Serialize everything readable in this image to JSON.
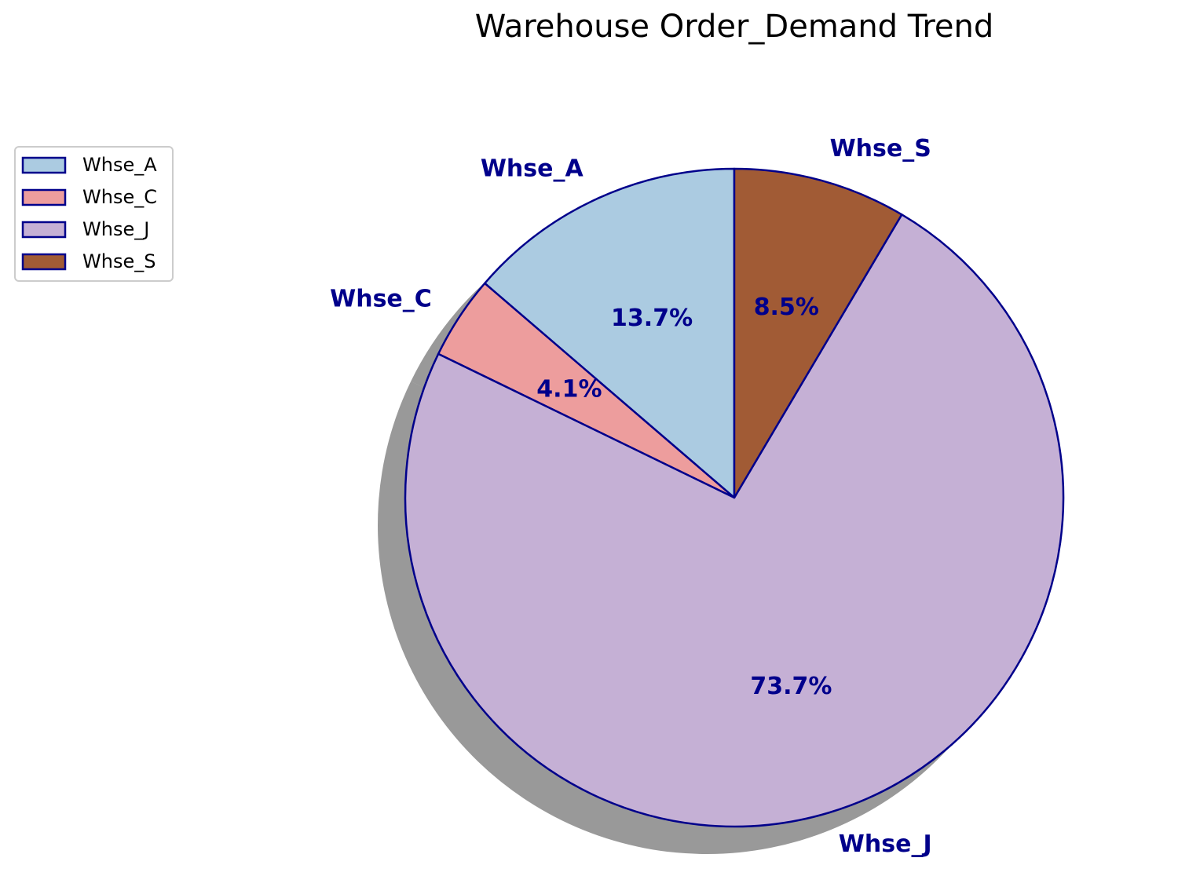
{
  "chart_data": {
    "type": "pie",
    "title": "Warehouse Order_Demand Trend",
    "categories": [
      "Whse_A",
      "Whse_C",
      "Whse_J",
      "Whse_S"
    ],
    "values": [
      13.7,
      4.1,
      73.7,
      8.5
    ],
    "value_labels": [
      "13.7%",
      "4.1%",
      "73.7%",
      "8.5%"
    ],
    "colors": [
      "#abcbe1",
      "#ed9d9d",
      "#c5b0d5",
      "#a15b35"
    ],
    "edge_color": "#00008b",
    "label_color": "#00008b",
    "start_angle_deg": 90,
    "direction": "counterclockwise",
    "shadow": true,
    "legend": {
      "placement": "upper-left",
      "entries": [
        "Whse_A",
        "Whse_C",
        "Whse_J",
        "Whse_S"
      ]
    }
  }
}
